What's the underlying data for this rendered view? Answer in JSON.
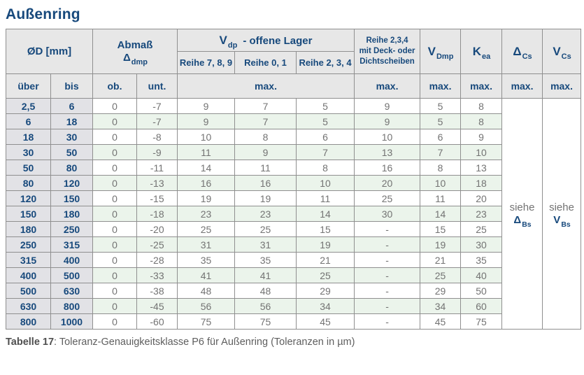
{
  "title": "Außenring",
  "colors": {
    "accent_navy": "#17497c",
    "header_bg": "#e7e7e7",
    "label_bg": "#e2e2e6",
    "row_green": "#ebf4eb",
    "grid_border": "#8f8f8f",
    "data_text": "#737373",
    "caption_text": "#4f4f4f"
  },
  "table": {
    "header": {
      "od": "ØD  [mm]",
      "abmass": {
        "line1": "Abmaß",
        "sym": "Δ",
        "sub": "dmp"
      },
      "vdp": {
        "main": "V",
        "sub": "dp",
        "rest": "-  offene Lager"
      },
      "reihe789": "Reihe 7, 8, 9",
      "reihe01": "Reihe 0, 1",
      "reihe234": "Reihe 2, 3, 4",
      "deck": {
        "lines": [
          "Reihe 2,3,4",
          "mit Deck- oder",
          "Dichtscheiben"
        ]
      },
      "vdmp": {
        "main": "V",
        "sub": "Dmp"
      },
      "kea": {
        "main": "K",
        "sub": "ea"
      },
      "dcs": {
        "main": "Δ",
        "sub": "Cs"
      },
      "vcs": {
        "main": "V",
        "sub": "Cs"
      },
      "ueber": "über",
      "bis": "bis",
      "ob": "ob.",
      "unt": "unt.",
      "max": "max."
    },
    "rows": [
      {
        "ueber": "2,5",
        "bis": "6",
        "ob": "0",
        "unt": "-7",
        "r789": "9",
        "r01": "7",
        "r234": "5",
        "deck": "9",
        "vdmp": "5",
        "kea": "8"
      },
      {
        "ueber": "6",
        "bis": "18",
        "ob": "0",
        "unt": "-7",
        "r789": "9",
        "r01": "7",
        "r234": "5",
        "deck": "9",
        "vdmp": "5",
        "kea": "8"
      },
      {
        "ueber": "18",
        "bis": "30",
        "ob": "0",
        "unt": "-8",
        "r789": "10",
        "r01": "8",
        "r234": "6",
        "deck": "10",
        "vdmp": "6",
        "kea": "9"
      },
      {
        "ueber": "30",
        "bis": "50",
        "ob": "0",
        "unt": "-9",
        "r789": "11",
        "r01": "9",
        "r234": "7",
        "deck": "13",
        "vdmp": "7",
        "kea": "10"
      },
      {
        "ueber": "50",
        "bis": "80",
        "ob": "0",
        "unt": "-11",
        "r789": "14",
        "r01": "11",
        "r234": "8",
        "deck": "16",
        "vdmp": "8",
        "kea": "13"
      },
      {
        "ueber": "80",
        "bis": "120",
        "ob": "0",
        "unt": "-13",
        "r789": "16",
        "r01": "16",
        "r234": "10",
        "deck": "20",
        "vdmp": "10",
        "kea": "18"
      },
      {
        "ueber": "120",
        "bis": "150",
        "ob": "0",
        "unt": "-15",
        "r789": "19",
        "r01": "19",
        "r234": "11",
        "deck": "25",
        "vdmp": "11",
        "kea": "20"
      },
      {
        "ueber": "150",
        "bis": "180",
        "ob": "0",
        "unt": "-18",
        "r789": "23",
        "r01": "23",
        "r234": "14",
        "deck": "30",
        "vdmp": "14",
        "kea": "23"
      },
      {
        "ueber": "180",
        "bis": "250",
        "ob": "0",
        "unt": "-20",
        "r789": "25",
        "r01": "25",
        "r234": "15",
        "deck": "-",
        "vdmp": "15",
        "kea": "25"
      },
      {
        "ueber": "250",
        "bis": "315",
        "ob": "0",
        "unt": "-25",
        "r789": "31",
        "r01": "31",
        "r234": "19",
        "deck": "-",
        "vdmp": "19",
        "kea": "30"
      },
      {
        "ueber": "315",
        "bis": "400",
        "ob": "0",
        "unt": "-28",
        "r789": "35",
        "r01": "35",
        "r234": "21",
        "deck": "-",
        "vdmp": "21",
        "kea": "35"
      },
      {
        "ueber": "400",
        "bis": "500",
        "ob": "0",
        "unt": "-33",
        "r789": "41",
        "r01": "41",
        "r234": "25",
        "deck": "-",
        "vdmp": "25",
        "kea": "40"
      },
      {
        "ueber": "500",
        "bis": "630",
        "ob": "0",
        "unt": "-38",
        "r789": "48",
        "r01": "48",
        "r234": "29",
        "deck": "-",
        "vdmp": "29",
        "kea": "50"
      },
      {
        "ueber": "630",
        "bis": "800",
        "ob": "0",
        "unt": "-45",
        "r789": "56",
        "r01": "56",
        "r234": "34",
        "deck": "-",
        "vdmp": "34",
        "kea": "60"
      },
      {
        "ueber": "800",
        "bis": "1000",
        "ob": "0",
        "unt": "-60",
        "r789": "75",
        "r01": "75",
        "r234": "45",
        "deck": "-",
        "vdmp": "45",
        "kea": "75"
      }
    ],
    "see": {
      "dcs": {
        "siehe": "siehe",
        "main": "Δ",
        "sub": "Bs"
      },
      "vcs": {
        "siehe": "siehe",
        "main": "V",
        "sub": "Bs"
      }
    }
  },
  "caption": {
    "bold": "Tabelle 17",
    "rest": ": Toleranz-Genauigkeitsklasse P6 für Außenring (Toleranzen in µm)"
  }
}
